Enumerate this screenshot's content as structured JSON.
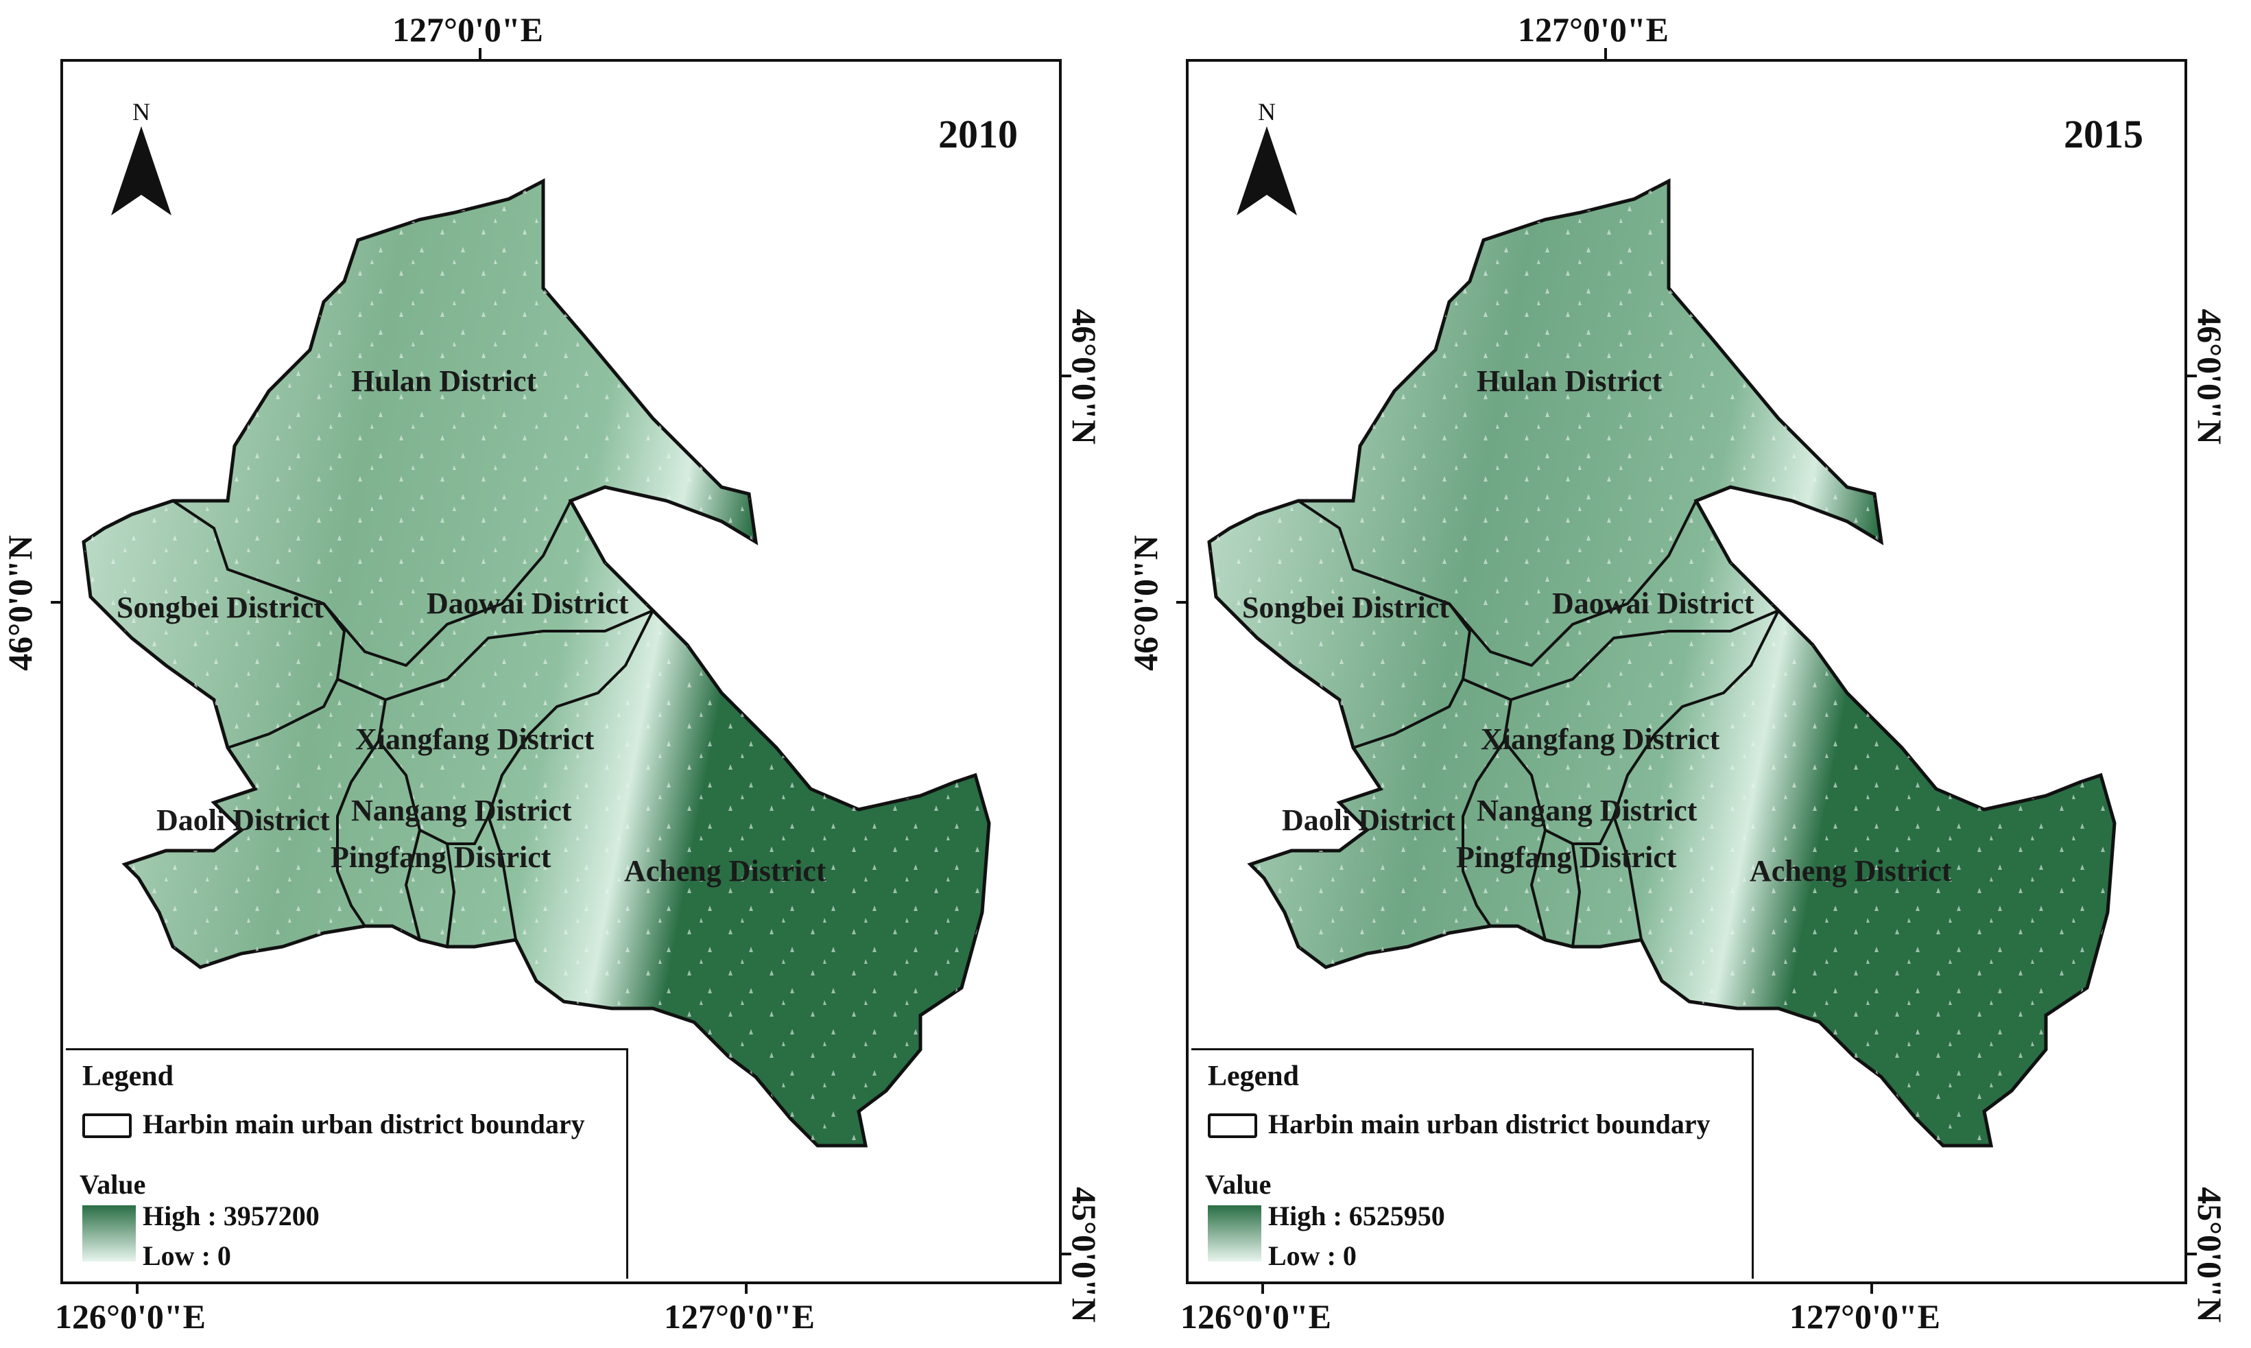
{
  "maps": [
    {
      "year": "2010",
      "north_label": "N",
      "top_lon_label": "127°0'0\"E",
      "bottom_lon_labels": [
        "126°0'0\"E",
        "127°0'0\"E"
      ],
      "left_lat_label": "46°0'0\"N",
      "right_lat_labels": [
        "46°0'0\"N",
        "45°0'0\"N"
      ],
      "districts": [
        "Hulan District",
        "Songbei District",
        "Daowai District",
        "Xiangfang District",
        "Daoli District",
        "Nangang District",
        "Pingfang District",
        "Acheng District"
      ],
      "legend": {
        "title": "Legend",
        "boundary_label": "Harbin main urban district boundary",
        "value_title": "Value",
        "high": "High : 3957200",
        "low": "Low : 0"
      }
    },
    {
      "year": "2015",
      "north_label": "N",
      "top_lon_label": "127°0'0\"E",
      "bottom_lon_labels": [
        "126°0'0\"E",
        "127°0'0\"E"
      ],
      "left_lat_label": "46°0'0\"N",
      "right_lat_labels": [
        "46°0'0\"N",
        "45°0'0\"N"
      ],
      "districts": [
        "Hulan District",
        "Songbei District",
        "Daowai District",
        "Xiangfang District",
        "Daoli District",
        "Nangang District",
        "Pingfang District",
        "Acheng District"
      ],
      "legend": {
        "title": "Legend",
        "boundary_label": "Harbin main urban district boundary",
        "value_title": "Value",
        "high": "High : 6525950",
        "low": "Low : 0"
      }
    }
  ],
  "colors": {
    "high": "#2a6e44",
    "mid": "#7fb28f",
    "light": "#c9e4d3",
    "low": "#e8f5ee",
    "boundary": "#111111"
  }
}
